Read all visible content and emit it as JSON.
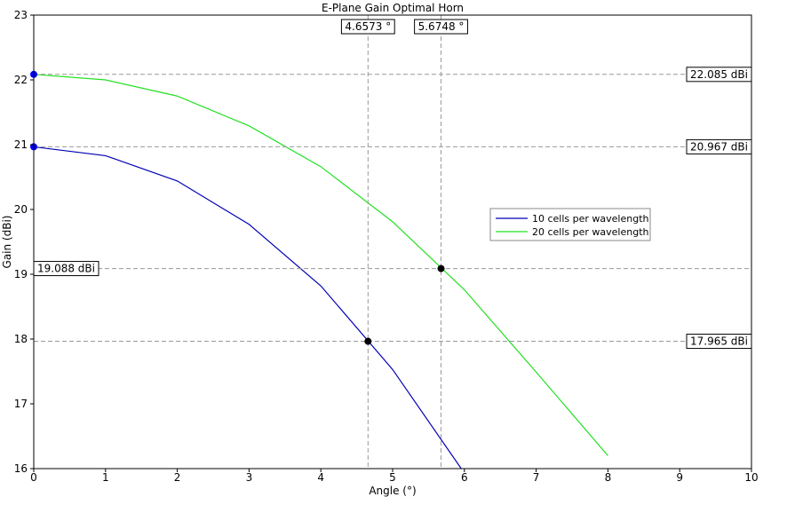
{
  "chart_data": {
    "type": "line",
    "title": "E-Plane Gain Optimal Horn",
    "xlabel": "Angle (°)",
    "ylabel": "Gain (dBi)",
    "xlim": [
      0,
      10
    ],
    "ylim": [
      16,
      23
    ],
    "x_ticks": [
      "0",
      "1",
      "2",
      "3",
      "4",
      "5",
      "6",
      "7",
      "8",
      "9",
      "10"
    ],
    "y_ticks": [
      "16",
      "17",
      "18",
      "19",
      "20",
      "21",
      "22",
      "23"
    ],
    "grid": true,
    "minor_grid": true,
    "legend_position": "center-right",
    "series": [
      {
        "name": "10 cells per wavelength",
        "color": "#0000b4",
        "x": [
          0,
          1,
          2,
          3,
          4,
          5,
          6
        ],
        "y": [
          20.967,
          20.83,
          20.44,
          19.77,
          18.82,
          17.53,
          15.93
        ]
      },
      {
        "name": "20 cells per wavelength",
        "color": "#22e022",
        "x": [
          0,
          1,
          2,
          3,
          4,
          5,
          6,
          7,
          8
        ],
        "y": [
          22.085,
          22.0,
          21.75,
          21.29,
          20.66,
          19.81,
          18.76,
          17.49,
          16.2
        ]
      }
    ],
    "markers": [
      {
        "x": 0,
        "y": 22.085,
        "color": "#0000ff"
      },
      {
        "x": 0,
        "y": 20.967,
        "color": "#0000ff"
      },
      {
        "x": 4.6573,
        "y": 17.965,
        "color": "#000000"
      },
      {
        "x": 5.6748,
        "y": 19.088,
        "color": "#000000"
      }
    ],
    "v_lines": [
      {
        "x": 4.6573,
        "label": "4.6573 °"
      },
      {
        "x": 5.6748,
        "label": "5.6748 °"
      }
    ],
    "h_lines": [
      {
        "y": 22.085,
        "label": "22.085 dBi",
        "side": "right"
      },
      {
        "y": 20.967,
        "label": "20.967 dBi",
        "side": "right"
      },
      {
        "y": 19.088,
        "label": "19.088 dBi",
        "side": "left"
      },
      {
        "y": 17.965,
        "label": "17.965 dBi",
        "side": "right"
      }
    ]
  }
}
